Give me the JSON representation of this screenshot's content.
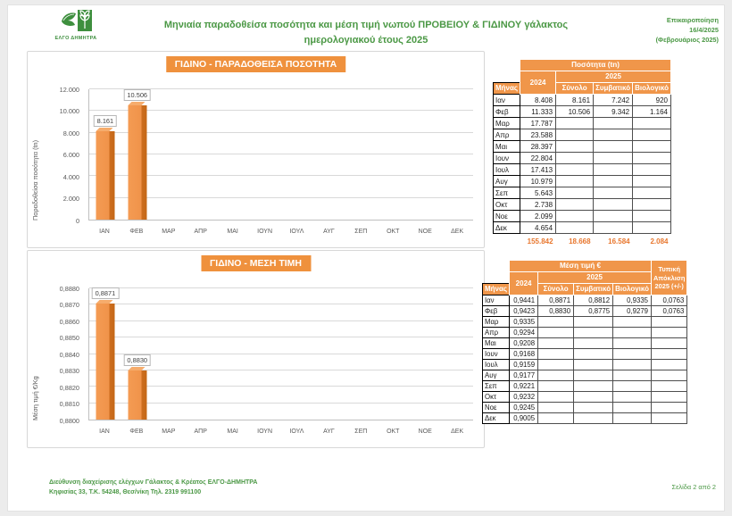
{
  "header": {
    "logo_text": "ΕΛΓΟ ΔΗΜΗΤΡΑ",
    "title_line1": "Μηνιαία παραδοθείσα ποσότητα και μέση τιμή νωπού ΠΡΟΒΕΙΟΥ & ΓΙΔΙΝΟΥ γάλακτος",
    "title_line2": "ημερολογιακού έτους 2025",
    "update_label": "Επικαιροποίηση",
    "update_date": "16/4/2025",
    "update_period": "(Φεβρουάριος 2025)"
  },
  "footer": {
    "line1": "Διεύθυνση διαχείρισης ελέγχων Γάλακτος & Κρέατος ΕΛΓΟ-ΔΗΜΗΤΡΑ",
    "line2": "Κηφισίας 33, Τ.Κ. 54248, Θεσ/νίκη Τηλ. 2319 991100",
    "page_number": "Σελίδα 2 από 2"
  },
  "colors": {
    "accent_orange": "#ef913d",
    "bar_front": "#f0934a",
    "bar_side": "#c46817",
    "totals_orange": "#e8772e",
    "brand_green": "#4b9845"
  },
  "chart_data": [
    {
      "type": "bar",
      "title": "ΓΙΔΙΝΟ - ΠΑΡΑΔΟΘΕΙΣΑ ΠΟΣΟΤΗΤΑ",
      "ylabel": "Παραδοθείσα ποσότητα (tn)",
      "xlabel": "",
      "categories": [
        "ΙΑΝ",
        "ΦΕΒ",
        "ΜΑΡ",
        "ΑΠΡ",
        "ΜΑΙ",
        "ΙΟΥΝ",
        "ΙΟΥΛ",
        "ΑΥΓ",
        "ΣΕΠ",
        "ΟΚΤ",
        "ΝΟΕ",
        "ΔΕΚ"
      ],
      "values": [
        8161,
        10506,
        null,
        null,
        null,
        null,
        null,
        null,
        null,
        null,
        null,
        null
      ],
      "value_labels": [
        "8.161",
        "10.506",
        null,
        null,
        null,
        null,
        null,
        null,
        null,
        null,
        null,
        null
      ],
      "ylim": [
        0,
        12000
      ],
      "ytick_labels": [
        "0",
        "2.000",
        "4.000",
        "6.000",
        "8.000",
        "10.000",
        "12.000"
      ],
      "grid": true,
      "legend": false
    },
    {
      "type": "bar",
      "title": "ΓΙΔΙΝΟ - ΜΕΣΗ ΤΙΜΗ",
      "ylabel": "Μέση τιμή €/Kg",
      "xlabel": "",
      "categories": [
        "ΙΑΝ",
        "ΦΕΒ",
        "ΜΑΡ",
        "ΑΠΡ",
        "ΜΑΙ",
        "ΙΟΥΝ",
        "ΙΟΥΛ",
        "ΑΥΓ",
        "ΣΕΠ",
        "ΟΚΤ",
        "ΝΟΕ",
        "ΔΕΚ"
      ],
      "values": [
        0.8871,
        0.883,
        null,
        null,
        null,
        null,
        null,
        null,
        null,
        null,
        null,
        null
      ],
      "value_labels": [
        "0,8871",
        "0,8830",
        null,
        null,
        null,
        null,
        null,
        null,
        null,
        null,
        null,
        null
      ],
      "ylim": [
        0.88,
        0.888
      ],
      "ytick_labels": [
        "0,8800",
        "0,8810",
        "0,8820",
        "0,8830",
        "0,8840",
        "0,8850",
        "0,8860",
        "0,8870",
        "0,8880"
      ],
      "grid": true,
      "legend": false
    }
  ],
  "tables": [
    {
      "title": "Ποσότητα (tn)",
      "month_header": "Μήνας",
      "col_2024": "2024",
      "col_2025": "2025",
      "subcols": [
        "Σύνολο",
        "Συμβατικό",
        "Βιολογικό"
      ],
      "rows": [
        [
          "Ιαν",
          "8.408",
          "8.161",
          "7.242",
          "920"
        ],
        [
          "Φεβ",
          "11.333",
          "10.506",
          "9.342",
          "1.164"
        ],
        [
          "Μαρ",
          "17.787",
          "",
          "",
          ""
        ],
        [
          "Απρ",
          "23.588",
          "",
          "",
          ""
        ],
        [
          "Μαι",
          "28.397",
          "",
          "",
          ""
        ],
        [
          "Ιουν",
          "22.804",
          "",
          "",
          ""
        ],
        [
          "Ιουλ",
          "17.413",
          "",
          "",
          ""
        ],
        [
          "Αυγ",
          "10.979",
          "",
          "",
          ""
        ],
        [
          "Σεπ",
          "5.643",
          "",
          "",
          ""
        ],
        [
          "Οκτ",
          "2.738",
          "",
          "",
          ""
        ],
        [
          "Νοε",
          "2.099",
          "",
          "",
          ""
        ],
        [
          "Δεκ",
          "4.654",
          "",
          "",
          ""
        ]
      ],
      "totals": [
        "155.842",
        "18.668",
        "16.584",
        "2.084"
      ]
    },
    {
      "title": "Μέση τιμή €",
      "month_header": "Μήνας",
      "col_2024": "2024",
      "col_2025": "2025",
      "subcols": [
        "Σύνολο",
        "Συμβατικό",
        "Βιολογικό"
      ],
      "stdev_header": "Τυπική Απόκλιση 2025 (+/-)",
      "rows": [
        [
          "Ιαν",
          "0,9441",
          "0,8871",
          "0,8812",
          "0,9335",
          "0,0763"
        ],
        [
          "Φεβ",
          "0,9423",
          "0,8830",
          "0,8775",
          "0,9279",
          "0,0763"
        ],
        [
          "Μαρ",
          "0,9335",
          "",
          "",
          "",
          ""
        ],
        [
          "Απρ",
          "0,9294",
          "",
          "",
          "",
          ""
        ],
        [
          "Μαι",
          "0,9208",
          "",
          "",
          "",
          ""
        ],
        [
          "Ιουν",
          "0,9168",
          "",
          "",
          "",
          ""
        ],
        [
          "Ιουλ",
          "0,9159",
          "",
          "",
          "",
          ""
        ],
        [
          "Αυγ",
          "0,9177",
          "",
          "",
          "",
          ""
        ],
        [
          "Σεπ",
          "0,9221",
          "",
          "",
          "",
          ""
        ],
        [
          "Οκτ",
          "0,9232",
          "",
          "",
          "",
          ""
        ],
        [
          "Νοε",
          "0,9245",
          "",
          "",
          "",
          ""
        ],
        [
          "Δεκ",
          "0,9005",
          "",
          "",
          "",
          ""
        ]
      ],
      "totals": null
    }
  ]
}
